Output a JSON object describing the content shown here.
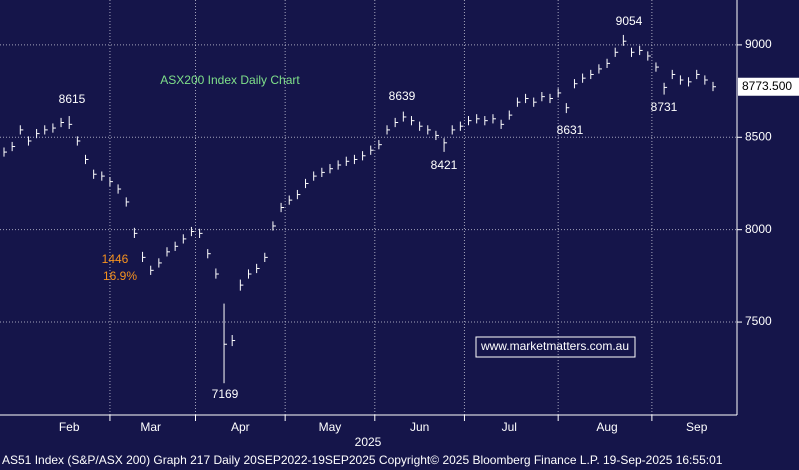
{
  "chart_data": {
    "type": "ohlc",
    "title": "ASX200 Index Daily Chart",
    "title_color": "#7fe08a",
    "bar_color": "#ffffff",
    "categories": [
      null,
      null,
      null,
      null,
      null,
      null,
      null,
      null,
      "Feb",
      null,
      null,
      null,
      null,
      null,
      null,
      null,
      null,
      null,
      "Mar",
      null,
      null,
      null,
      null,
      null,
      null,
      null,
      null,
      null,
      null,
      "Apr",
      null,
      null,
      null,
      null,
      null,
      null,
      null,
      null,
      null,
      null,
      "May",
      null,
      null,
      null,
      null,
      null,
      null,
      null,
      null,
      null,
      null,
      "Jun",
      null,
      null,
      null,
      null,
      null,
      null,
      null,
      null,
      null,
      null,
      "Jul",
      null,
      null,
      null,
      null,
      null,
      null,
      null,
      null,
      null,
      null,
      null,
      "Aug",
      null,
      null,
      null,
      null,
      null,
      null,
      null,
      null,
      null,
      null,
      "Sep",
      null,
      null
    ],
    "xlabel": "2025",
    "high": [
      8445,
      8475,
      8565,
      8505,
      8545,
      8565,
      8575,
      8605,
      8615,
      8505,
      8405,
      8325,
      8315,
      8285,
      8245,
      8175,
      8010,
      7880,
      7805,
      7845,
      7905,
      7935,
      7975,
      8015,
      8005,
      7895,
      7790,
      7600,
      7430,
      7730,
      7785,
      7815,
      7875,
      8045,
      8145,
      8185,
      8215,
      8275,
      8315,
      8335,
      8355,
      8375,
      8395,
      8405,
      8425,
      8455,
      8485,
      8565,
      8605,
      8639,
      8615,
      8585,
      8565,
      8535,
      8495,
      8565,
      8585,
      8615,
      8625,
      8615,
      8625,
      8595,
      8645,
      8715,
      8735,
      8715,
      8745,
      8735,
      8765,
      8685,
      8815,
      8845,
      8865,
      8895,
      8925,
      8985,
      9054,
      8985,
      8995,
      8965,
      8905,
      8795,
      8865,
      8835,
      8825,
      8865,
      8835,
      8800
    ],
    "low": [
      8395,
      8425,
      8515,
      8455,
      8495,
      8515,
      8525,
      8555,
      8545,
      8455,
      8355,
      8275,
      8265,
      8235,
      8195,
      8125,
      7955,
      7825,
      7755,
      7795,
      7855,
      7885,
      7925,
      7965,
      7955,
      7845,
      7735,
      7169,
      7370,
      7670,
      7735,
      7765,
      7825,
      7995,
      8095,
      8135,
      8165,
      8225,
      8265,
      8285,
      8305,
      8325,
      8345,
      8355,
      8375,
      8405,
      8435,
      8515,
      8555,
      8585,
      8565,
      8535,
      8515,
      8485,
      8421,
      8515,
      8535,
      8565,
      8575,
      8565,
      8575,
      8545,
      8595,
      8665,
      8685,
      8665,
      8695,
      8685,
      8715,
      8631,
      8765,
      8795,
      8815,
      8845,
      8875,
      8935,
      8995,
      8935,
      8945,
      8915,
      8855,
      8731,
      8815,
      8785,
      8775,
      8815,
      8785,
      8750
    ],
    "close": [
      8420,
      8450,
      8540,
      8480,
      8520,
      8540,
      8550,
      8580,
      8570,
      8480,
      8380,
      8300,
      8290,
      8260,
      8220,
      8150,
      7980,
      7850,
      7780,
      7820,
      7880,
      7910,
      7950,
      7990,
      7980,
      7870,
      7760,
      7380,
      7400,
      7700,
      7760,
      7790,
      7850,
      8020,
      8120,
      8160,
      8190,
      8250,
      8290,
      8310,
      8330,
      8350,
      8370,
      8380,
      8400,
      8430,
      8460,
      8540,
      8580,
      8610,
      8590,
      8560,
      8540,
      8510,
      8470,
      8540,
      8560,
      8590,
      8600,
      8590,
      8600,
      8570,
      8620,
      8690,
      8710,
      8690,
      8720,
      8710,
      8740,
      8660,
      8790,
      8820,
      8840,
      8870,
      8900,
      8960,
      9020,
      8960,
      8970,
      8940,
      8880,
      8770,
      8840,
      8810,
      8800,
      8840,
      8810,
      8773.5
    ],
    "ylim": [
      6997,
      9243
    ],
    "yticks": [
      7500,
      8000,
      8500,
      9000
    ],
    "grid": true,
    "last_price": {
      "value": 8773.5,
      "label": "8773.500"
    },
    "annotations": [
      {
        "text": "8615",
        "color": "#ffffff"
      },
      {
        "text": "7169",
        "color": "#ffffff"
      },
      {
        "text": "8639",
        "color": "#ffffff"
      },
      {
        "text": "8421",
        "color": "#ffffff"
      },
      {
        "text": "8631",
        "color": "#ffffff"
      },
      {
        "text": "9054",
        "color": "#ffffff"
      },
      {
        "text": "8731",
        "color": "#ffffff"
      },
      {
        "text": "1446",
        "color": "#f7931e"
      },
      {
        "text": "16.9%",
        "color": "#f7931e"
      }
    ],
    "watermark": "www.marketmatters.com.au",
    "footer": "AS51 Index (S&P/ASX 200) Graph 217  Daily 20SEP2022-19SEP2025  Copyright© 2025 Bloomberg Finance L.P.  19-Sep-2025 16:55:01"
  }
}
